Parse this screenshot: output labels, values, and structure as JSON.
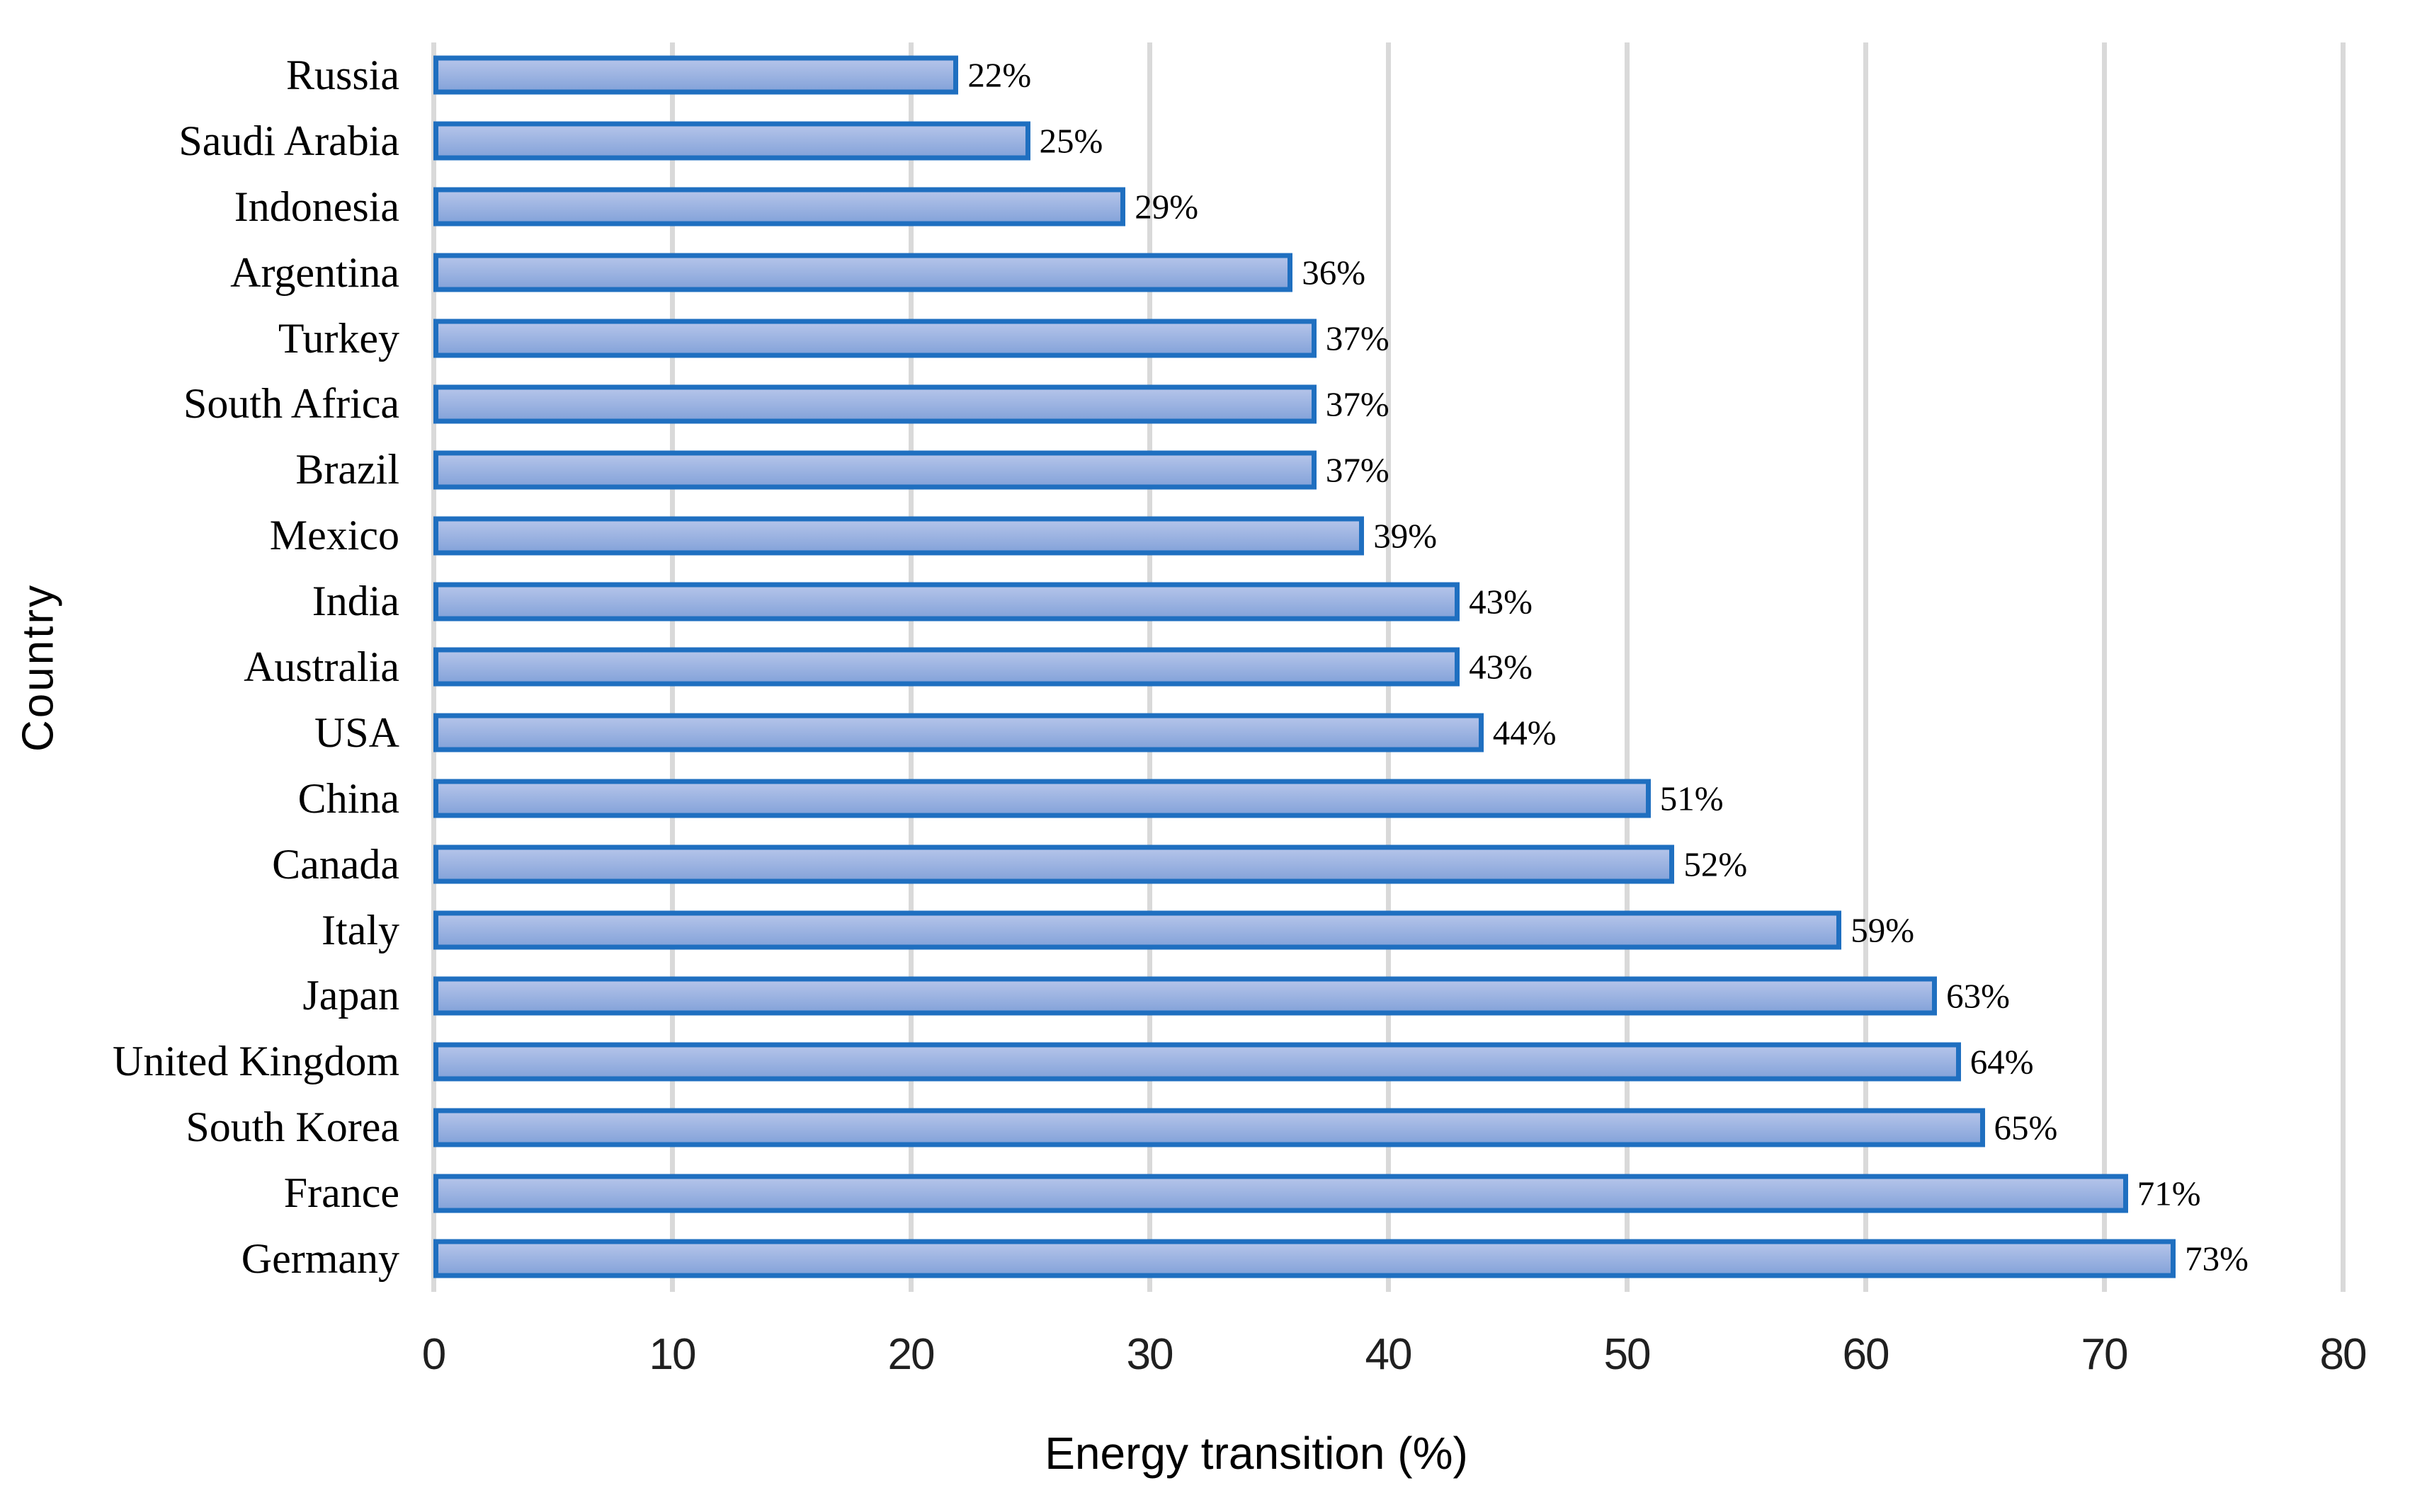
{
  "chart_data": {
    "type": "bar",
    "orientation": "horizontal",
    "title": "",
    "xlabel": "Energy transition (%)",
    "ylabel": "Country",
    "xlim": [
      0,
      80
    ],
    "xticks": [
      "0",
      "10",
      "20",
      "30",
      "40",
      "50",
      "60",
      "70",
      "80"
    ],
    "grid": "vertical",
    "legend": "none",
    "categories": [
      "Russia",
      "Saudi Arabia",
      "Indonesia",
      "Argentina",
      "Turkey",
      "South Africa",
      "Brazil",
      "Mexico",
      "India",
      "Australia",
      "USA",
      "China",
      "Canada",
      "Italy",
      "Japan",
      "United Kingdom",
      "South Korea",
      "France",
      "Germany"
    ],
    "values": [
      22,
      25,
      29,
      36,
      37,
      37,
      37,
      39,
      43,
      43,
      44,
      51,
      52,
      59,
      63,
      64,
      65,
      71,
      73
    ],
    "data_labels": [
      "22%",
      "25%",
      "29%",
      "36%",
      "37%",
      "37%",
      "37%",
      "39%",
      "43%",
      "43%",
      "44%",
      "51%",
      "52%",
      "59%",
      "63%",
      "64%",
      "65%",
      "71%",
      "73%"
    ],
    "colors": {
      "bar_fill_top": "#b3c3e9",
      "bar_fill_bottom": "#86a4da",
      "bar_border": "#1f6fc0",
      "gridline": "#d9d9d9",
      "text": "#000000"
    }
  }
}
